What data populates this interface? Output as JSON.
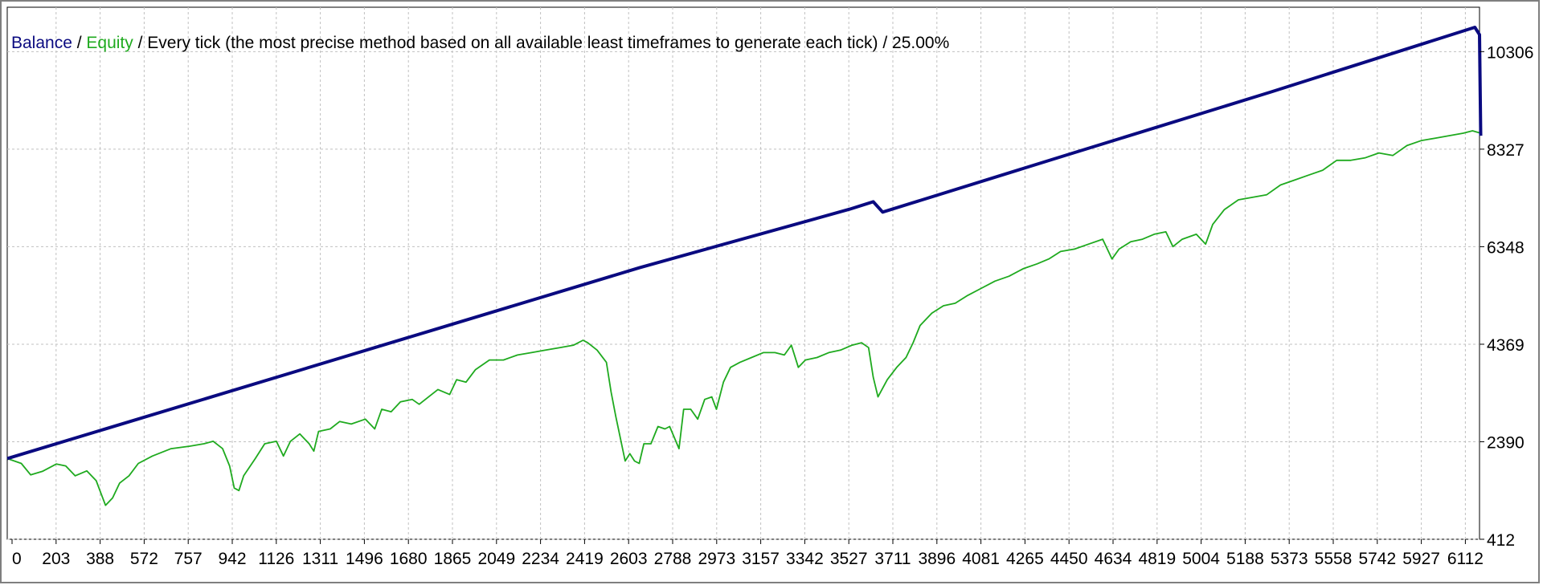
{
  "chart_data": {
    "type": "line",
    "title_parts": {
      "balance": "Balance",
      "sep1": " / ",
      "equity": "Equity",
      "rest": " / Every tick (the most precise method based on all available least timeframes to generate each tick) / 25.00%"
    },
    "xlim": [
      0,
      6290
    ],
    "ylim": [
      412,
      11207
    ],
    "x_ticks": [
      "0",
      "203",
      "388",
      "572",
      "757",
      "942",
      "1126",
      "1311",
      "1496",
      "1680",
      "1865",
      "2049",
      "2234",
      "2419",
      "2603",
      "2788",
      "2973",
      "3157",
      "3342",
      "3527",
      "3711",
      "3896",
      "4081",
      "4265",
      "4450",
      "4634",
      "4819",
      "5004",
      "5188",
      "5373",
      "5558",
      "5742",
      "5927",
      "6112"
    ],
    "y_ticks": [
      "10306",
      "8327",
      "6348",
      "4369",
      "2390",
      "412"
    ],
    "colors": {
      "balance": "#0a0a80",
      "equity": "#1faa1f",
      "grid": "#c0c0c0",
      "title_rest": "#000000"
    },
    "series": [
      {
        "name": "Balance",
        "points": [
          [
            0,
            2050
          ],
          [
            900,
            3340
          ],
          [
            1800,
            4630
          ],
          [
            2700,
            5920
          ],
          [
            3600,
            7110
          ],
          [
            3700,
            7260
          ],
          [
            3740,
            7050
          ],
          [
            4500,
            8170
          ],
          [
            5400,
            9490
          ],
          [
            6270,
            10800
          ],
          [
            6290,
            10650
          ],
          [
            6295,
            8600
          ]
        ]
      },
      {
        "name": "Equity",
        "points": [
          [
            0,
            2050
          ],
          [
            60,
            1950
          ],
          [
            100,
            1720
          ],
          [
            150,
            1790
          ],
          [
            210,
            1940
          ],
          [
            250,
            1900
          ],
          [
            290,
            1700
          ],
          [
            340,
            1800
          ],
          [
            380,
            1600
          ],
          [
            400,
            1350
          ],
          [
            420,
            1100
          ],
          [
            450,
            1250
          ],
          [
            480,
            1550
          ],
          [
            520,
            1700
          ],
          [
            560,
            1950
          ],
          [
            620,
            2100
          ],
          [
            700,
            2250
          ],
          [
            780,
            2300
          ],
          [
            840,
            2350
          ],
          [
            880,
            2400
          ],
          [
            920,
            2250
          ],
          [
            950,
            1900
          ],
          [
            970,
            1450
          ],
          [
            990,
            1400
          ],
          [
            1010,
            1700
          ],
          [
            1060,
            2050
          ],
          [
            1100,
            2350
          ],
          [
            1150,
            2400
          ],
          [
            1180,
            2100
          ],
          [
            1210,
            2400
          ],
          [
            1250,
            2550
          ],
          [
            1290,
            2350
          ],
          [
            1310,
            2200
          ],
          [
            1330,
            2600
          ],
          [
            1380,
            2650
          ],
          [
            1420,
            2800
          ],
          [
            1470,
            2750
          ],
          [
            1530,
            2850
          ],
          [
            1570,
            2650
          ],
          [
            1600,
            3050
          ],
          [
            1640,
            3000
          ],
          [
            1680,
            3200
          ],
          [
            1730,
            3250
          ],
          [
            1760,
            3150
          ],
          [
            1800,
            3300
          ],
          [
            1840,
            3450
          ],
          [
            1890,
            3350
          ],
          [
            1920,
            3650
          ],
          [
            1960,
            3600
          ],
          [
            2000,
            3850
          ],
          [
            2060,
            4050
          ],
          [
            2120,
            4050
          ],
          [
            2180,
            4150
          ],
          [
            2240,
            4200
          ],
          [
            2300,
            4250
          ],
          [
            2360,
            4300
          ],
          [
            2420,
            4350
          ],
          [
            2460,
            4450
          ],
          [
            2480,
            4400
          ],
          [
            2520,
            4250
          ],
          [
            2560,
            4000
          ],
          [
            2580,
            3400
          ],
          [
            2600,
            2900
          ],
          [
            2620,
            2450
          ],
          [
            2640,
            2000
          ],
          [
            2660,
            2150
          ],
          [
            2680,
            2000
          ],
          [
            2700,
            1950
          ],
          [
            2720,
            2350
          ],
          [
            2750,
            2350
          ],
          [
            2780,
            2700
          ],
          [
            2810,
            2650
          ],
          [
            2830,
            2700
          ],
          [
            2870,
            2250
          ],
          [
            2890,
            3050
          ],
          [
            2920,
            3050
          ],
          [
            2950,
            2850
          ],
          [
            2980,
            3250
          ],
          [
            3010,
            3300
          ],
          [
            3030,
            3050
          ],
          [
            3060,
            3600
          ],
          [
            3090,
            3900
          ],
          [
            3130,
            4000
          ],
          [
            3180,
            4100
          ],
          [
            3230,
            4200
          ],
          [
            3280,
            4200
          ],
          [
            3320,
            4150
          ],
          [
            3350,
            4350
          ],
          [
            3380,
            3900
          ],
          [
            3410,
            4050
          ],
          [
            3460,
            4100
          ],
          [
            3510,
            4200
          ],
          [
            3560,
            4250
          ],
          [
            3610,
            4350
          ],
          [
            3650,
            4400
          ],
          [
            3680,
            4300
          ],
          [
            3700,
            3700
          ],
          [
            3720,
            3300
          ],
          [
            3760,
            3650
          ],
          [
            3800,
            3900
          ],
          [
            3840,
            4100
          ],
          [
            3870,
            4400
          ],
          [
            3900,
            4750
          ],
          [
            3950,
            5000
          ],
          [
            4000,
            5150
          ],
          [
            4050,
            5200
          ],
          [
            4100,
            5350
          ],
          [
            4160,
            5500
          ],
          [
            4220,
            5650
          ],
          [
            4280,
            5750
          ],
          [
            4340,
            5900
          ],
          [
            4400,
            6000
          ],
          [
            4450,
            6100
          ],
          [
            4500,
            6250
          ],
          [
            4560,
            6300
          ],
          [
            4620,
            6400
          ],
          [
            4680,
            6500
          ],
          [
            4720,
            6100
          ],
          [
            4750,
            6300
          ],
          [
            4800,
            6450
          ],
          [
            4850,
            6500
          ],
          [
            4900,
            6600
          ],
          [
            4950,
            6650
          ],
          [
            4980,
            6350
          ],
          [
            5020,
            6500
          ],
          [
            5080,
            6600
          ],
          [
            5120,
            6400
          ],
          [
            5150,
            6800
          ],
          [
            5200,
            7100
          ],
          [
            5260,
            7300
          ],
          [
            5320,
            7350
          ],
          [
            5380,
            7400
          ],
          [
            5440,
            7600
          ],
          [
            5500,
            7700
          ],
          [
            5560,
            7800
          ],
          [
            5620,
            7900
          ],
          [
            5680,
            8100
          ],
          [
            5740,
            8100
          ],
          [
            5800,
            8150
          ],
          [
            5860,
            8250
          ],
          [
            5920,
            8200
          ],
          [
            5980,
            8400
          ],
          [
            6040,
            8500
          ],
          [
            6100,
            8550
          ],
          [
            6160,
            8600
          ],
          [
            6220,
            8650
          ],
          [
            6260,
            8700
          ],
          [
            6295,
            8650
          ]
        ]
      }
    ]
  }
}
